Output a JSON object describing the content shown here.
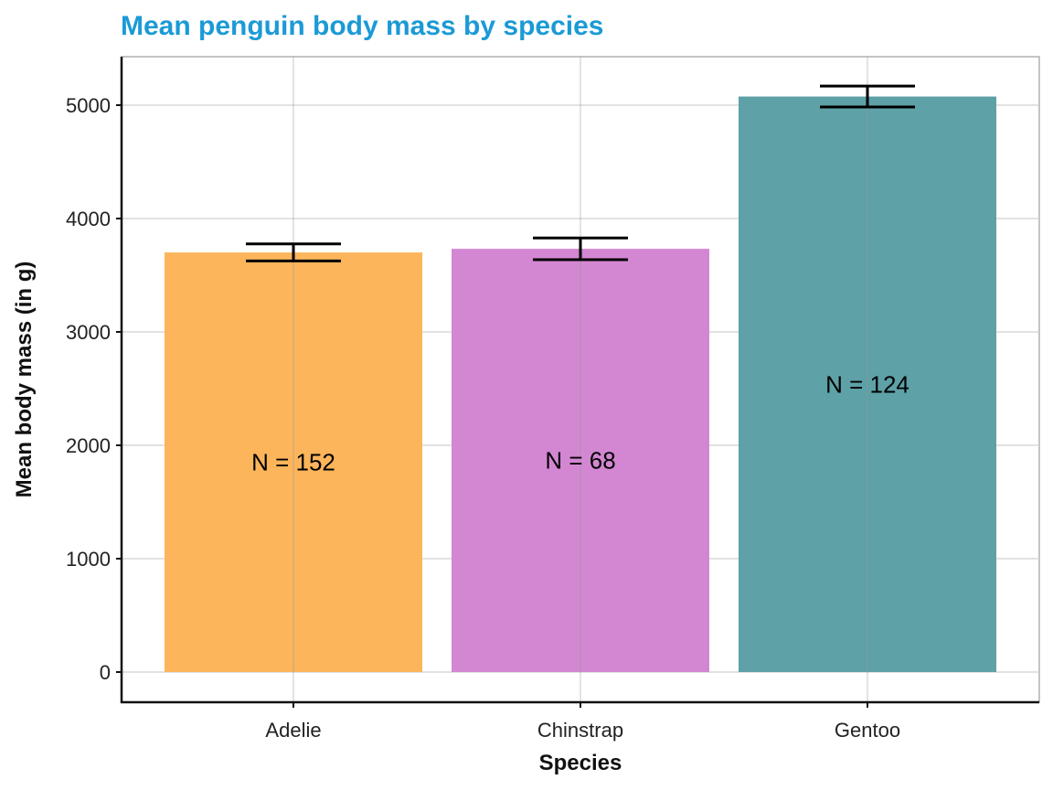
{
  "chart_data": {
    "type": "bar",
    "title": "Mean penguin body mass by species",
    "xlabel": "Species",
    "ylabel": "Mean body mass (in g)",
    "categories": [
      "Adelie",
      "Chinstrap",
      "Gentoo"
    ],
    "values": [
      3701,
      3733,
      5076
    ],
    "error_low": [
      3626,
      3637,
      4984
    ],
    "error_high": [
      3776,
      3829,
      5168
    ],
    "bar_labels": [
      "N = 152",
      "N = 68",
      "N = 124"
    ],
    "bar_colors": [
      "#FDB55B",
      "#D387D2",
      "#5EA1A7"
    ],
    "title_color": "#1B9AD6",
    "ylim": [
      -250,
      5450
    ],
    "yticks": [
      0,
      1000,
      2000,
      3000,
      4000,
      5000
    ],
    "grid": true,
    "legend": "none"
  }
}
